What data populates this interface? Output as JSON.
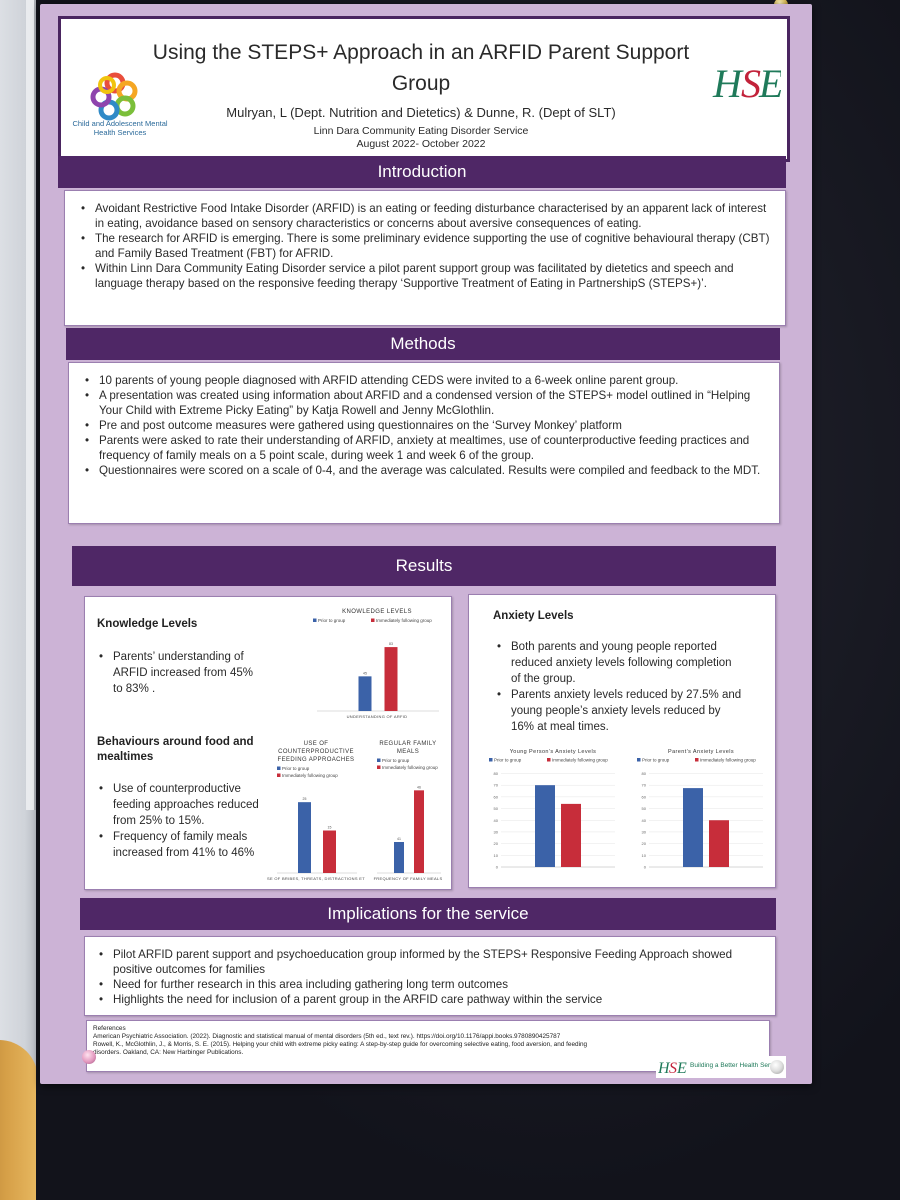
{
  "poster": {
    "title": "Using the STEPS+ Approach in an ARFID Parent Support Group",
    "authors": "Mulryan, L (Dept. Nutrition and Dietetics) & Dunne, R. (Dept of SLT)",
    "organisation": "Linn Dara Community Eating Disorder Service",
    "dates": "August 2022- October 2022",
    "left_logo_text": "Child and Adolescent Mental Health Services",
    "right_logo": "HSE"
  },
  "introduction": {
    "heading": "Introduction",
    "bullets": [
      "Avoidant Restrictive Food Intake Disorder (ARFID) is an eating or feeding disturbance characterised by an apparent lack of interest in eating, avoidance based on sensory characteristics or concerns about aversive consequences of eating.",
      "The research for ARFID is emerging. There is some preliminary evidence supporting the use of cognitive behavioural therapy (CBT) and Family Based Treatment (FBT) for AFRID.",
      "Within Linn Dara Community Eating Disorder service a pilot parent support group was facilitated by dietetics and speech and language therapy based on the responsive feeding therapy ‘Supportive Treatment of Eating in PartnershipS (STEPS+)’."
    ]
  },
  "methods": {
    "heading": "Methods",
    "bullets": [
      "10 parents of young people diagnosed with ARFID attending CEDS were invited to a 6-week online parent group.",
      "A presentation was created using information about ARFID and a condensed version of the STEPS+ model outlined in “Helping Your Child with Extreme Picky Eating” by Katja Rowell and Jenny McGlothlin.",
      "Pre and post outcome measures were gathered using questionnaires on the ‘Survey Monkey’ platform",
      "Parents were asked to rate their understanding of ARFID, anxiety at mealtimes, use of counterproductive feeding practices and frequency of family meals on a 5 point scale, during week 1 and week 6 of the group.",
      "Questionnaires were scored on a scale of 0-4, and the average was calculated. Results were compiled and feedback to the MDT."
    ]
  },
  "results": {
    "heading": "Results",
    "knowledge": {
      "heading": "Knowledge Levels",
      "bullets": [
        "Parents’ understanding of ARFID increased from 45% to 83% ."
      ]
    },
    "behaviours": {
      "heading": "Behaviours around food and mealtimes",
      "bullets": [
        "Use of counterproductive feeding approaches reduced from 25% to 15%.",
        "Frequency of family meals increased from 41% to 46%"
      ]
    },
    "anxiety": {
      "heading": "Anxiety Levels",
      "bullets": [
        "Both parents and young people reported reduced anxiety levels following completion of the group.",
        "Parents anxiety levels reduced by 27.5% and young people’s anxiety levels reduced by 16% at meal times."
      ]
    }
  },
  "chart_data": [
    {
      "type": "bar",
      "title": "KNOWLEDGE LEVELS",
      "legend": [
        "Prior to group",
        "Immediately following group"
      ],
      "colors": [
        "#3b62a8",
        "#c72d3a"
      ],
      "categories": [
        "UNDERSTANDING OF ARFID"
      ],
      "series": [
        {
          "name": "Prior to group",
          "values": [
            45
          ]
        },
        {
          "name": "Immediately following group",
          "values": [
            83
          ]
        }
      ],
      "ylim": [
        0,
        100
      ]
    },
    {
      "type": "bar",
      "title": "USE OF COUNTERPRODUCTIVE FEEDING APPROACHES",
      "legend": [
        "Prior to group",
        "Immediately following group"
      ],
      "colors": [
        "#3b62a8",
        "#c72d3a"
      ],
      "categories": [
        "USE OF BRIBES, THREATS, DISTRACTIONS ETC"
      ],
      "series": [
        {
          "name": "Prior to group",
          "values": [
            25
          ]
        },
        {
          "name": "Immediately following group",
          "values": [
            15
          ]
        }
      ],
      "ylim": [
        0,
        30
      ]
    },
    {
      "type": "bar",
      "title": "REGULAR FAMILY MEALS",
      "legend": [
        "Prior to group",
        "Immediately following group"
      ],
      "colors": [
        "#3b62a8",
        "#c72d3a"
      ],
      "categories": [
        "FREQUENCY OF FAMILY MEALS"
      ],
      "series": [
        {
          "name": "Prior to group",
          "values": [
            41
          ]
        },
        {
          "name": "Immediately following group",
          "values": [
            46
          ]
        }
      ],
      "ylim": [
        38,
        47
      ]
    },
    {
      "type": "bar",
      "title": "Young Person’s Anxiety Levels",
      "legend": [
        "Prior to group",
        "Immediately following group"
      ],
      "colors": [
        "#3b62a8",
        "#c72d3a"
      ],
      "categories": [
        ""
      ],
      "series": [
        {
          "name": "Prior to group",
          "values": [
            70
          ]
        },
        {
          "name": "Immediately following group",
          "values": [
            54
          ]
        }
      ],
      "yticks": [
        0,
        10,
        20,
        30,
        40,
        50,
        60,
        70,
        80
      ],
      "ylim": [
        0,
        80
      ]
    },
    {
      "type": "bar",
      "title": "Parent’s Anxiety Levels",
      "legend": [
        "Prior to group",
        "Immediately following group"
      ],
      "colors": [
        "#3b62a8",
        "#c72d3a"
      ],
      "categories": [
        ""
      ],
      "series": [
        {
          "name": "Prior to group",
          "values": [
            67.5
          ]
        },
        {
          "name": "Immediately following group",
          "values": [
            40
          ]
        }
      ],
      "yticks": [
        0,
        10,
        20,
        30,
        40,
        50,
        60,
        70,
        80
      ],
      "ylim": [
        0,
        80
      ]
    }
  ],
  "implications": {
    "heading": "Implications for the service",
    "bullets": [
      "Pilot ARFID parent support and psychoeducation group informed by the STEPS+ Responsive Feeding Approach showed positive outcomes for families",
      "Need for further research in this area including gathering long term outcomes",
      "Highlights the need for inclusion of a parent group in the ARFID care pathway within the service"
    ]
  },
  "references": {
    "heading": "References",
    "items": [
      "American Psychiatric Association. (2022). Diagnostic and statistical manual of mental disorders (5th ed., text rev.). https://doi.org/10.1176/appi.books.9780890425787",
      "Rowell, K., McGlothlin, J., & Morris, S. E. (2015). Helping your child with extreme picky eating: A step-by-step guide for overcoming selective eating, food aversion, and feeding disorders. Oakland, CA: New Harbinger Publications."
    ],
    "footer_tagline": "Building a Better Health Service"
  },
  "colors": {
    "poster_background": "#ccb3d6",
    "section_bar": "#4f2766",
    "prior_series": "#3b62a8",
    "following_series": "#c72d3a",
    "hse_green": "#1f7a5a",
    "hse_red": "#c2223a"
  }
}
